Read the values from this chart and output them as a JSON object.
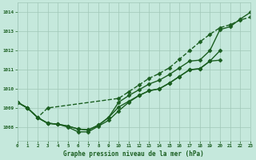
{
  "title": "Graphe pression niveau de la mer (hPa)",
  "bg_color": "#c5e8dc",
  "grid_color": "#a0c8b8",
  "line_color": "#1a5e20",
  "text_color": "#1a5e20",
  "xmin": 0,
  "xmax": 23,
  "ymin": 1007.3,
  "ymax": 1014.5,
  "yticks": [
    1008,
    1009,
    1010,
    1011,
    1012,
    1013,
    1014
  ],
  "series": [
    {
      "x": [
        0,
        1,
        2,
        3,
        10,
        11,
        12,
        13,
        14,
        15,
        16,
        17,
        18,
        19,
        20,
        21,
        22,
        23
      ],
      "y": [
        1009.3,
        1009.0,
        1008.5,
        1009.0,
        1009.5,
        1009.85,
        1010.2,
        1010.55,
        1010.8,
        1011.1,
        1011.55,
        1012.0,
        1012.45,
        1012.85,
        1013.2,
        1013.35,
        1013.6,
        1013.75
      ],
      "marker": "D",
      "markersize": 2.5,
      "linewidth": 1.0,
      "linestyle": "--"
    },
    {
      "x": [
        0,
        1,
        2,
        3,
        4,
        5,
        6,
        7,
        8,
        9,
        10,
        11,
        12,
        13,
        14,
        15,
        16,
        17,
        18,
        19,
        20,
        21,
        22,
        23
      ],
      "y": [
        1009.3,
        1009.0,
        1008.5,
        1008.2,
        1008.15,
        1008.05,
        1007.9,
        1007.85,
        1008.1,
        1008.5,
        1009.3,
        1009.65,
        1009.95,
        1010.25,
        1010.45,
        1010.75,
        1011.1,
        1011.45,
        1011.5,
        1012.0,
        1013.1,
        1013.25,
        1013.65,
        1014.0
      ],
      "marker": "D",
      "markersize": 2.5,
      "linewidth": 1.0,
      "linestyle": "-"
    },
    {
      "x": [
        0,
        1,
        2,
        3,
        4,
        5,
        6,
        7,
        8,
        9,
        10,
        11,
        12,
        13,
        14,
        15,
        16,
        17,
        18,
        19,
        20
      ],
      "y": [
        1009.3,
        1009.0,
        1008.5,
        1008.2,
        1008.15,
        1008.05,
        1007.9,
        1007.85,
        1008.1,
        1008.5,
        1009.05,
        1009.35,
        1009.65,
        1009.9,
        1010.0,
        1010.3,
        1010.65,
        1011.0,
        1011.05,
        1011.45,
        1011.5
      ],
      "marker": "D",
      "markersize": 2.5,
      "linewidth": 1.0,
      "linestyle": "-"
    },
    {
      "x": [
        0,
        1,
        2,
        3,
        4,
        5,
        6,
        7,
        8,
        9,
        10,
        11,
        12,
        13,
        14,
        15,
        16,
        17,
        18,
        19,
        20
      ],
      "y": [
        1009.3,
        1009.0,
        1008.5,
        1008.2,
        1008.15,
        1008.0,
        1007.75,
        1007.75,
        1008.05,
        1008.35,
        1008.85,
        1009.3,
        1009.65,
        1009.9,
        1010.0,
        1010.3,
        1010.65,
        1011.0,
        1011.05,
        1011.45,
        1012.0
      ],
      "marker": "D",
      "markersize": 2.5,
      "linewidth": 1.0,
      "linestyle": "-"
    }
  ]
}
